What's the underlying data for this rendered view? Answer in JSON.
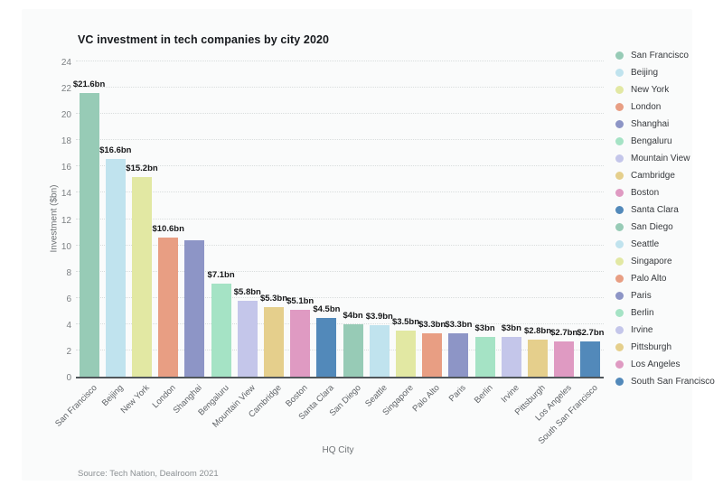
{
  "source": "Source: Tech Nation, Dealroom 2021",
  "chart_data": {
    "type": "bar",
    "title": "VC investment in tech companies by city 2020",
    "xlabel": "HQ City",
    "ylabel": "Investment ($bn)",
    "ylim": [
      0,
      24
    ],
    "yticks": [
      0,
      2,
      4,
      6,
      8,
      10,
      12,
      14,
      16,
      18,
      20,
      22,
      24
    ],
    "grid": true,
    "legend_position": "right",
    "categories": [
      "San Francisco",
      "Beijing",
      "New York",
      "London",
      "Shanghai",
      "Bengaluru",
      "Mountain View",
      "Cambridge",
      "Boston",
      "Santa Clara",
      "San Diego",
      "Seattle",
      "Singapore",
      "Palo Alto",
      "Paris",
      "Berlin",
      "Irvine",
      "Pittsburgh",
      "Los Angeles",
      "South San Francisco"
    ],
    "values": [
      21.6,
      16.6,
      15.2,
      10.6,
      10.4,
      7.1,
      5.8,
      5.3,
      5.1,
      4.5,
      4,
      3.9,
      3.5,
      3.3,
      3.3,
      3,
      3,
      2.8,
      2.7,
      2.7
    ],
    "bar_labels": [
      "$21.6bn",
      "$16.6bn",
      "$15.2bn",
      "$10.6bn",
      "",
      "$7.1bn",
      "$5.8bn",
      "$5.3bn",
      "$5.1bn",
      "$4.5bn",
      "$4bn",
      "$3.9bn",
      "$3.5bn",
      "$3.3bn",
      "$3.3bn",
      "$3bn",
      "$3bn",
      "$2.8bn",
      "$2.7bn",
      "$2.7bn"
    ],
    "palette": [
      "#97cbb6",
      "#c0e3ee",
      "#e2e8a3",
      "#e89e83",
      "#8d95c6",
      "#a5e3c5",
      "#c4c6ea",
      "#e5cf8c",
      "#df9ac2",
      "#5289ba"
    ]
  }
}
